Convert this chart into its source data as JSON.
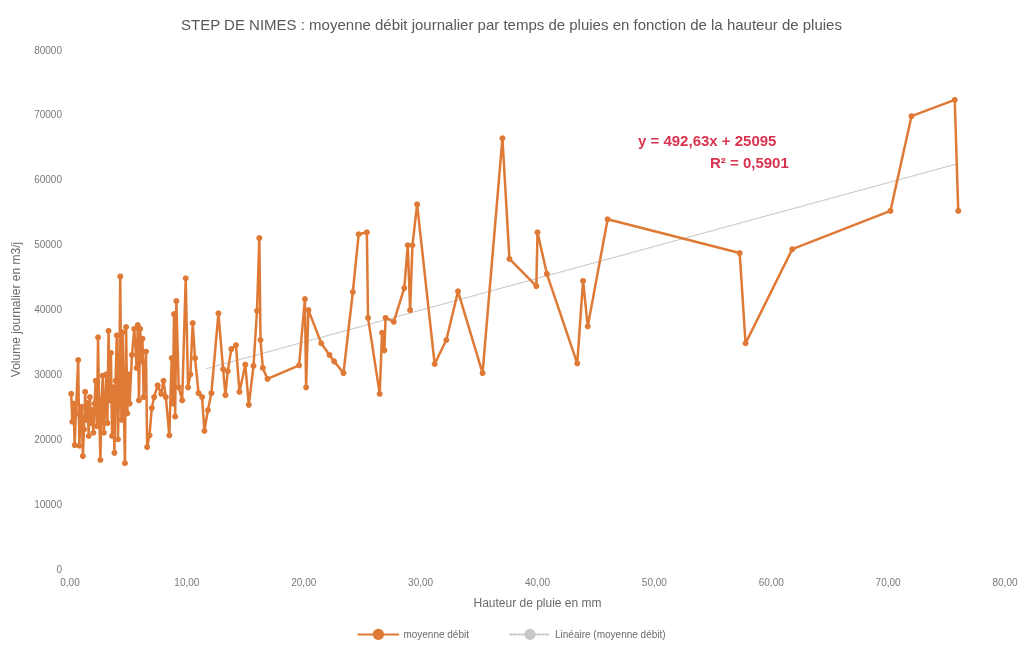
{
  "chart_data": {
    "type": "line",
    "title": "STEP DE NIMES : moyenne débit journalier par temps de pluies en fonction de la hauteur de pluies",
    "xlabel": "Hauteur de pluie en mm",
    "ylabel": "Volume journalier en m3/j",
    "annotations": [
      "y = 492,63x + 25095",
      "R² = 0,5901"
    ],
    "series": [
      {
        "name": "moyenne débit",
        "color": "#df7a36",
        "x": [
          0.1,
          0.2,
          0.3,
          0.4,
          0.5,
          0.7,
          0.8,
          0.9,
          1.0,
          1.1,
          1.2,
          1.3,
          1.4,
          1.5,
          1.6,
          1.7,
          1.8,
          1.9,
          2.0,
          2.1,
          2.2,
          2.3,
          2.4,
          2.5,
          2.6,
          2.7,
          2.8,
          2.9,
          3.0,
          3.1,
          3.2,
          3.3,
          3.4,
          3.5,
          3.6,
          3.7,
          3.8,
          3.9,
          4.0,
          4.1,
          4.2,
          4.3,
          4.4,
          4.5,
          4.6,
          4.7,
          4.8,
          4.9,
          5.0,
          5.1,
          5.3,
          5.5,
          5.7,
          5.8,
          5.9,
          6.0,
          6.1,
          6.2,
          6.3,
          6.5,
          6.6,
          6.8,
          7.0,
          7.2,
          7.5,
          7.8,
          8.0,
          8.2,
          8.5,
          8.7,
          8.8,
          8.9,
          9.0,
          9.1,
          9.3,
          9.6,
          9.9,
          10.1,
          10.3,
          10.5,
          10.7,
          11.0,
          11.3,
          11.5,
          11.8,
          12.1,
          12.7,
          13.1,
          13.3,
          13.5,
          13.8,
          14.2,
          14.5,
          15.0,
          15.3,
          15.7,
          16.0,
          16.2,
          16.3,
          16.5,
          16.9,
          19.6,
          20.1,
          20.2,
          20.4,
          21.5,
          22.2,
          22.6,
          23.4,
          24.2,
          24.7,
          25.4,
          25.5,
          26.5,
          26.7,
          26.9,
          27.0,
          27.7,
          28.6,
          28.9,
          29.1,
          29.3,
          29.7,
          31.2,
          32.2,
          33.2,
          35.3,
          37.0,
          37.6,
          39.9,
          40.0,
          40.8,
          43.4,
          43.9,
          44.3,
          46.0,
          57.3,
          57.8,
          61.8,
          70.2,
          72.0,
          75.7,
          76.0
        ],
        "values": [
          27000,
          22700,
          25500,
          19100,
          24000,
          32200,
          19000,
          23500,
          25000,
          17400,
          21500,
          27300,
          23000,
          25600,
          20500,
          26500,
          22500,
          24500,
          21000,
          25500,
          29000,
          22000,
          35700,
          24000,
          16800,
          26000,
          29800,
          21000,
          25000,
          30000,
          22500,
          36700,
          26000,
          33300,
          20500,
          28000,
          17900,
          29000,
          36000,
          20000,
          27000,
          45100,
          23000,
          36500,
          25500,
          16300,
          37300,
          24000,
          30000,
          25500,
          33000,
          37000,
          31000,
          37600,
          26000,
          37000,
          32000,
          35500,
          26500,
          33500,
          18800,
          20600,
          24800,
          26500,
          28300,
          27000,
          29000,
          26500,
          20600,
          32500,
          25500,
          39300,
          23500,
          41300,
          28000,
          26000,
          44800,
          28000,
          30000,
          37900,
          32500,
          27100,
          26500,
          21300,
          24500,
          27100,
          39400,
          30800,
          26800,
          30500,
          33900,
          34500,
          27300,
          31500,
          25300,
          31300,
          39800,
          51000,
          35300,
          31000,
          29300,
          31400,
          41600,
          28000,
          39900,
          34800,
          33000,
          32000,
          30200,
          42700,
          51600,
          51900,
          38700,
          27000,
          36400,
          33700,
          38700,
          38100,
          43300,
          49900,
          39900,
          49900,
          56200,
          31600,
          35300,
          42800,
          30200,
          66400,
          47800,
          43600,
          51900,
          45500,
          31700,
          44400,
          37400,
          53900,
          48700,
          34800,
          49300,
          55200,
          69800,
          72300,
          55200
        ]
      },
      {
        "name": "Linéaire (moyenne débit)",
        "color": "#c8c8c8",
        "marker": "none",
        "line_style": "dotted",
        "x": [
          11.7,
          76.0
        ],
        "values": [
          30900,
          62500
        ]
      }
    ],
    "xlim": [
      0,
      80
    ],
    "xticks": [
      {
        "value": 0,
        "label": "0,00"
      },
      {
        "value": 10,
        "label": "10,00"
      },
      {
        "value": 20,
        "label": "20,00"
      },
      {
        "value": 30,
        "label": "30,00"
      },
      {
        "value": 40,
        "label": "40,00"
      },
      {
        "value": 50,
        "label": "50,00"
      },
      {
        "value": 60,
        "label": "60,00"
      },
      {
        "value": 70,
        "label": "70,00"
      },
      {
        "value": 80,
        "label": "80,00"
      }
    ],
    "ylim": [
      0,
      80000
    ],
    "yticks": [
      0,
      10000,
      20000,
      30000,
      40000,
      50000,
      60000,
      70000,
      80000
    ],
    "grid": false,
    "legend": "bottom",
    "marker": "circle",
    "line_style": "solid"
  }
}
